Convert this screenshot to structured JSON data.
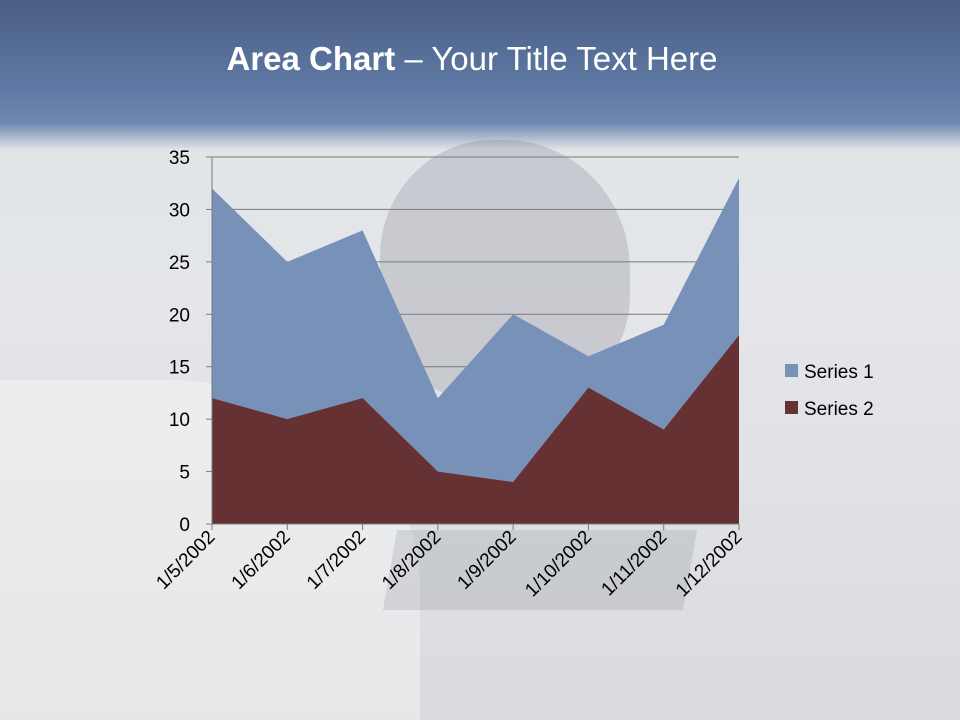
{
  "slide": {
    "title_bold": "Area Chart",
    "title_rest": " – Your Title Text Here"
  },
  "chart_data": {
    "type": "area",
    "title": "",
    "xlabel": "",
    "ylabel": "",
    "categories": [
      "1/5/2002",
      "1/6/2002",
      "1/7/2002",
      "1/8/2002",
      "1/9/2002",
      "1/10/2002",
      "1/11/2002",
      "1/12/2002"
    ],
    "series": [
      {
        "name": "Series 1",
        "values": [
          32,
          25,
          28,
          12,
          20,
          16,
          19,
          33
        ],
        "color": "#7891b8"
      },
      {
        "name": "Series 2",
        "values": [
          12,
          10,
          12,
          5,
          4,
          13,
          9,
          18
        ],
        "color": "#663133"
      }
    ],
    "ylim": [
      0,
      35
    ],
    "yticks": [
      0,
      5,
      10,
      15,
      20,
      25,
      30,
      35
    ],
    "grid": true,
    "stacked": false,
    "legend_position": "right"
  }
}
